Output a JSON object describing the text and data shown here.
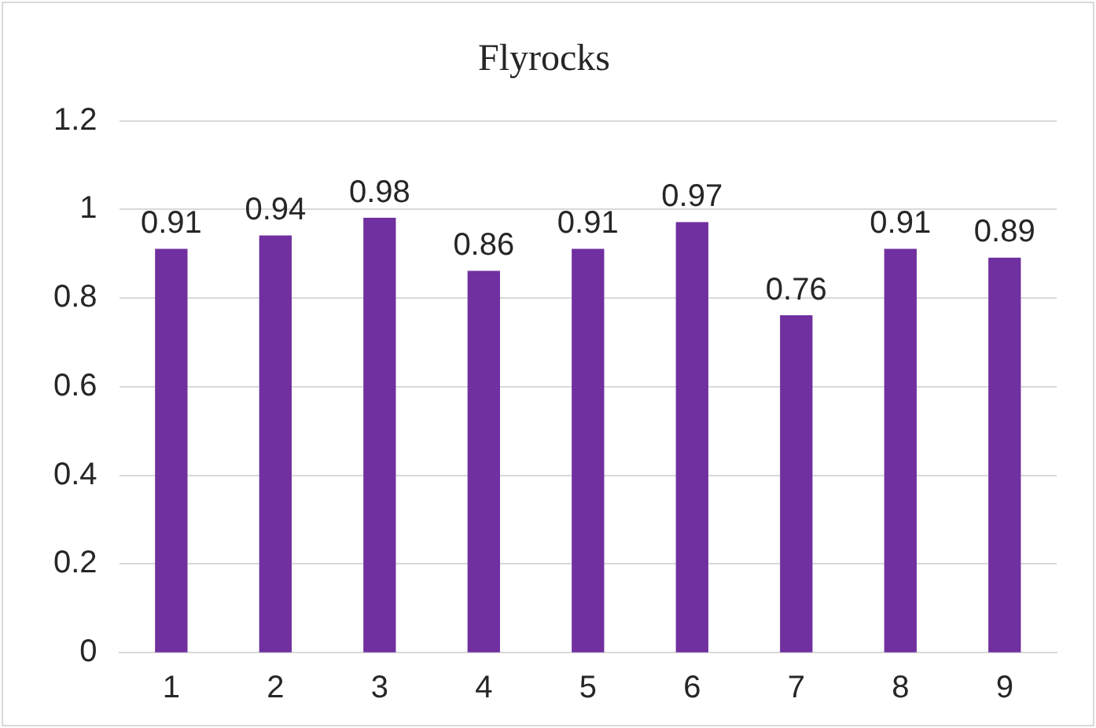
{
  "chart_data": {
    "type": "bar",
    "title": "Flyrocks",
    "categories": [
      "1",
      "2",
      "3",
      "4",
      "5",
      "6",
      "7",
      "8",
      "9"
    ],
    "values": [
      0.91,
      0.94,
      0.98,
      0.86,
      0.91,
      0.97,
      0.76,
      0.91,
      0.89
    ],
    "color": "#7030a0",
    "ylim": [
      0,
      1.2
    ],
    "yticks": [
      0,
      0.2,
      0.4,
      0.6,
      0.8,
      1,
      1.2
    ],
    "grid": "y",
    "data_labels": true,
    "legend": false
  }
}
